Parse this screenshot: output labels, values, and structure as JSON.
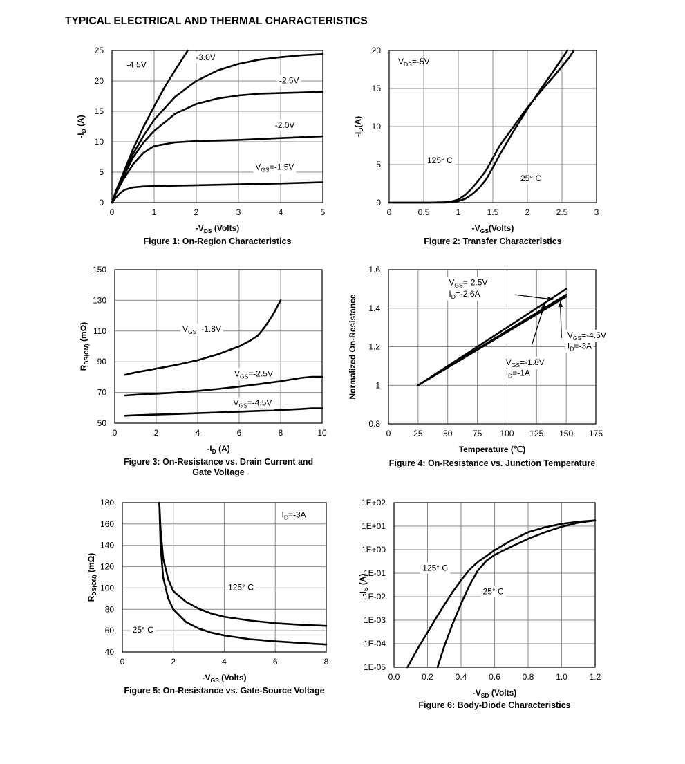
{
  "page_title": "TYPICAL ELECTRICAL AND THERMAL CHARACTERISTICS",
  "chart_data": [
    {
      "id": "fig1",
      "type": "line",
      "title": "Figure 1: On-Region Characteristics",
      "title_lines": [
        "Figure 1: On-Region Characteristics"
      ],
      "xlabel": {
        "pre": "-V",
        "sub": "DS",
        "post": " (Volts)"
      },
      "ylabel": {
        "pre": "-I",
        "sub": "D",
        "post": " (A)"
      },
      "xlim": [
        0,
        5
      ],
      "ylim": [
        0,
        25
      ],
      "xlog": false,
      "ylog": false,
      "xticks": [
        0,
        1,
        2,
        3,
        4,
        5
      ],
      "yticks": [
        0,
        5,
        10,
        15,
        20,
        25
      ],
      "xtick_labels": [
        "0",
        "1",
        "2",
        "3",
        "4",
        "5"
      ],
      "ytick_labels": [
        "0",
        "5",
        "10",
        "15",
        "20",
        "25"
      ],
      "series": [
        {
          "x": [
            0,
            0.1,
            0.25,
            0.5,
            0.75,
            1,
            1.25,
            1.5,
            1.75,
            1.8
          ],
          "y": [
            0,
            2,
            4.5,
            8.8,
            12.5,
            15.8,
            19,
            21.8,
            24.5,
            25
          ]
        },
        {
          "x": [
            0,
            0.1,
            0.25,
            0.5,
            0.75,
            1,
            1.5,
            2,
            2.5,
            3,
            3.5,
            4,
            4.5,
            5
          ],
          "y": [
            0,
            1.8,
            4.2,
            8,
            11,
            13.6,
            17.4,
            20,
            21.7,
            22.8,
            23.5,
            23.9,
            24.2,
            24.4
          ]
        },
        {
          "x": [
            0,
            0.1,
            0.25,
            0.5,
            0.75,
            1,
            1.5,
            2,
            2.5,
            3,
            3.5,
            4,
            5
          ],
          "y": [
            0,
            1.7,
            4,
            7.4,
            9.9,
            11.8,
            14.6,
            16.2,
            17.1,
            17.6,
            17.9,
            18,
            18.2
          ]
        },
        {
          "x": [
            0,
            0.1,
            0.25,
            0.5,
            0.75,
            1,
            1.5,
            2,
            2.5,
            3,
            4,
            5
          ],
          "y": [
            0,
            1.6,
            3.6,
            6.3,
            8.2,
            9.3,
            9.9,
            10.1,
            10.2,
            10.3,
            10.6,
            10.9
          ]
        },
        {
          "x": [
            0,
            0.1,
            0.2,
            0.3,
            0.5,
            0.75,
            1,
            2,
            3,
            4,
            5
          ],
          "y": [
            0,
            0.9,
            1.6,
            2.1,
            2.5,
            2.65,
            2.7,
            2.85,
            3,
            3.15,
            3.35
          ]
        }
      ],
      "annotations": [
        {
          "x": 0.58,
          "y": 22.2,
          "pre": "-4.5V",
          "sub": "",
          "post": "",
          "anchor": "middle",
          "bg": false
        },
        {
          "x": 2.22,
          "y": 23.4,
          "pre": "-3.0V",
          "sub": "",
          "post": "",
          "anchor": "middle",
          "bg": true
        },
        {
          "x": 4.2,
          "y": 19.6,
          "pre": "-2.5V",
          "sub": "",
          "post": "",
          "anchor": "middle",
          "bg": true
        },
        {
          "x": 4.1,
          "y": 12.3,
          "pre": "-2.0V",
          "sub": "",
          "post": "",
          "anchor": "middle",
          "bg": true
        },
        {
          "x": 3.4,
          "y": 5.4,
          "pre": "V",
          "sub": "GS",
          "post": "=-1.5V",
          "anchor": "start",
          "bg": true
        }
      ]
    },
    {
      "id": "fig2",
      "type": "line",
      "title": "Figure 2: Transfer Characteristics",
      "title_lines": [
        "Figure 2: Transfer Characteristics"
      ],
      "xlabel": {
        "pre": "-V",
        "sub": "GS",
        "post": "(Volts)"
      },
      "ylabel": {
        "pre": "-I",
        "sub": "D",
        "post": "(A)"
      },
      "xlim": [
        0,
        3
      ],
      "ylim": [
        0,
        20
      ],
      "xlog": false,
      "ylog": false,
      "xticks": [
        0,
        0.5,
        1,
        1.5,
        2,
        2.5,
        3
      ],
      "yticks": [
        0,
        5,
        10,
        15,
        20
      ],
      "xtick_labels": [
        "0",
        "0.5",
        "1",
        "1.5",
        "2",
        "2.5",
        "3"
      ],
      "ytick_labels": [
        "0",
        "5",
        "10",
        "15",
        "20"
      ],
      "series": [
        {
          "x": [
            0,
            0.6,
            0.8,
            0.9,
            1,
            1.1,
            1.2,
            1.3,
            1.4,
            1.6,
            1.8,
            2,
            2.2,
            2.4,
            2.6,
            2.67
          ],
          "y": [
            0,
            0,
            0.05,
            0.15,
            0.4,
            1,
            1.9,
            3,
            4.2,
            7.5,
            10,
            12.5,
            14.7,
            16.8,
            19,
            20
          ]
        },
        {
          "x": [
            0,
            0.8,
            0.9,
            1,
            1.1,
            1.2,
            1.3,
            1.4,
            1.5,
            1.6,
            1.8,
            2,
            2.2,
            2.4,
            2.58
          ],
          "y": [
            0,
            0,
            0.05,
            0.2,
            0.5,
            1.1,
            1.9,
            3,
            4.6,
            6.3,
            9.4,
            12.3,
            15,
            17.6,
            20
          ]
        }
      ],
      "annotations": [
        {
          "x": 0.13,
          "y": 18.2,
          "pre": "V",
          "sub": "DS",
          "post": "=-5V",
          "anchor": "start",
          "bg": false
        },
        {
          "x": 0.55,
          "y": 5.2,
          "pre": "125° C",
          "sub": "",
          "post": "",
          "anchor": "start",
          "bg": true
        },
        {
          "x": 1.9,
          "y": 2.8,
          "pre": "25° C",
          "sub": "",
          "post": "",
          "anchor": "start",
          "bg": true
        }
      ]
    },
    {
      "id": "fig3",
      "type": "line",
      "title": "Figure 3: On-Resistance vs. Drain Current and Gate Voltage",
      "title_lines": [
        "Figure 3: On-Resistance vs. Drain Current and",
        "Gate Voltage"
      ],
      "xlabel": {
        "pre": "-I",
        "sub": "D",
        "post": " (A)"
      },
      "ylabel": {
        "pre": "R",
        "sub": "DS(ON)",
        "post": " (mΩ)"
      },
      "xlim": [
        0,
        10
      ],
      "ylim": [
        50,
        150
      ],
      "xlog": false,
      "ylog": false,
      "xticks": [
        0,
        2,
        4,
        6,
        8,
        10
      ],
      "yticks": [
        50,
        70,
        90,
        110,
        130,
        150
      ],
      "xtick_labels": [
        "0",
        "2",
        "4",
        "6",
        "8",
        "10"
      ],
      "ytick_labels": [
        "50",
        "70",
        "90",
        "110",
        "130",
        "150"
      ],
      "series": [
        {
          "x": [
            0.5,
            1,
            2,
            3,
            4,
            5,
            6,
            6.5,
            6.9,
            7.2,
            7.6,
            8
          ],
          "y": [
            81.5,
            83,
            85.5,
            88,
            91,
            95,
            100,
            103.5,
            107,
            112,
            120,
            130
          ]
        },
        {
          "x": [
            0.5,
            1,
            2,
            3,
            4,
            5,
            6,
            7,
            8,
            9,
            9.5,
            10
          ],
          "y": [
            68,
            68.5,
            69.2,
            70,
            71,
            72.3,
            73.8,
            75.5,
            77.3,
            79.5,
            80.2,
            80.2
          ]
        },
        {
          "x": [
            0.5,
            1,
            2,
            3,
            4,
            5,
            6,
            7,
            8,
            9,
            9.5,
            10
          ],
          "y": [
            54.8,
            55.2,
            55.6,
            56,
            56.5,
            57,
            57.5,
            58,
            58.5,
            59.2,
            59.7,
            59.7
          ]
        }
      ],
      "annotations": [
        {
          "x": 4.2,
          "y": 109.5,
          "pre": "V",
          "sub": "GS",
          "post": "=-1.8V",
          "anchor": "middle",
          "bg": true
        },
        {
          "x": 6.7,
          "y": 80.5,
          "pre": "V",
          "sub": "GS",
          "post": "=-2.5V",
          "anchor": "middle",
          "bg": true
        },
        {
          "x": 6.65,
          "y": 61.4,
          "pre": "V",
          "sub": "GS",
          "post": "=-4.5V",
          "anchor": "middle",
          "bg": true
        }
      ]
    },
    {
      "id": "fig4",
      "type": "line",
      "title": "Figure 4: On-Resistance vs. Junction Temperature",
      "title_lines": [
        "Figure 4: On-Resistance vs. Junction Temperature"
      ],
      "xlabel": {
        "pre": "Temperature (℃)",
        "sub": "",
        "post": ""
      },
      "ylabel": {
        "pre": "Normalized On-Resistance",
        "sub": "",
        "post": ""
      },
      "xlim": [
        0,
        175
      ],
      "ylim": [
        0.8,
        1.6
      ],
      "xlog": false,
      "ylog": false,
      "xticks": [
        0,
        25,
        50,
        75,
        100,
        125,
        150,
        175
      ],
      "yticks": [
        0.8,
        1,
        1.2,
        1.4,
        1.6
      ],
      "xtick_labels": [
        "0",
        "25",
        "50",
        "75",
        "100",
        "125",
        "150",
        "175"
      ],
      "ytick_labels": [
        "0.8",
        "1",
        "1.2",
        "1.4",
        "1.6"
      ],
      "series": [
        {
          "x": [
            25,
            150
          ],
          "y": [
            1,
            1.5
          ]
        },
        {
          "x": [
            25,
            150
          ],
          "y": [
            1,
            1.47
          ]
        },
        {
          "x": [
            25,
            150
          ],
          "y": [
            1,
            1.46
          ]
        }
      ],
      "annotations": [
        {
          "x": 51,
          "y": 1.52,
          "pre": "V",
          "sub": "GS",
          "post": "=-2.5V",
          "anchor": "start",
          "bg": true
        },
        {
          "x": 51,
          "y": 1.46,
          "pre": "I",
          "sub": "D",
          "post": "=-2.6A",
          "anchor": "start",
          "bg": true
        },
        {
          "x": 151,
          "y": 1.245,
          "pre": "V",
          "sub": "GS",
          "post": "=-4.5V",
          "anchor": "start",
          "bg": true
        },
        {
          "x": 151,
          "y": 1.19,
          "pre": "I",
          "sub": "D",
          "post": "=-3A",
          "anchor": "start",
          "bg": true
        },
        {
          "x": 99,
          "y": 1.105,
          "pre": "V",
          "sub": "GS",
          "post": "=-1.8V",
          "anchor": "start",
          "bg": true
        },
        {
          "x": 99,
          "y": 1.05,
          "pre": "I",
          "sub": "D",
          "post": "=-1A",
          "anchor": "start",
          "bg": true
        }
      ],
      "arrows": [
        {
          "from": [
            107,
            1.47
          ],
          "to": [
            139,
            1.445
          ]
        },
        {
          "from": [
            146,
            1.245
          ],
          "to": [
            145,
            1.435
          ]
        },
        {
          "from": [
            121,
            1.21
          ],
          "to": [
            132,
            1.425
          ]
        }
      ]
    },
    {
      "id": "fig5",
      "type": "line",
      "title": "Figure 5: On-Resistance vs. Gate-Source Voltage",
      "title_lines": [
        "Figure 5: On-Resistance vs. Gate-Source Voltage"
      ],
      "xlabel": {
        "pre": "-V",
        "sub": "GS",
        "post": " (Volts)"
      },
      "ylabel": {
        "pre": "R",
        "sub": "DS(ON)",
        "post": " (mΩ)"
      },
      "xlim": [
        0,
        8
      ],
      "ylim": [
        40,
        180
      ],
      "xlog": false,
      "ylog": false,
      "xticks": [
        0,
        2,
        4,
        6,
        8
      ],
      "yticks": [
        40,
        60,
        80,
        100,
        120,
        140,
        160,
        180
      ],
      "xtick_labels": [
        "0",
        "2",
        "4",
        "6",
        "8"
      ],
      "ytick_labels": [
        "40",
        "60",
        "80",
        "100",
        "120",
        "140",
        "160",
        "180"
      ],
      "series": [
        {
          "x": [
            1.45,
            1.5,
            1.6,
            1.8,
            2,
            2.5,
            3,
            3.5,
            4,
            5,
            6,
            7,
            8
          ],
          "y": [
            180,
            155,
            128,
            108,
            97,
            87,
            80.5,
            76,
            73,
            69.5,
            67,
            65.5,
            64.5
          ]
        },
        {
          "x": [
            1.45,
            1.5,
            1.6,
            1.8,
            2,
            2.5,
            3,
            3.5,
            4,
            5,
            6,
            7,
            8
          ],
          "y": [
            180,
            140,
            110,
            90,
            80,
            68,
            62,
            58,
            55.5,
            52,
            50,
            48.5,
            47
          ]
        }
      ],
      "annotations": [
        {
          "x": 6.25,
          "y": 166,
          "pre": "I",
          "sub": "D",
          "post": "=-3A",
          "anchor": "start",
          "bg": false
        },
        {
          "x": 4.15,
          "y": 98,
          "pre": "125° C",
          "sub": "",
          "post": "",
          "anchor": "start",
          "bg": true
        },
        {
          "x": 0.4,
          "y": 58,
          "pre": "25° C",
          "sub": "",
          "post": "",
          "anchor": "start",
          "bg": true
        }
      ]
    },
    {
      "id": "fig6",
      "type": "line",
      "title": "Figure 6: Body-Diode Characteristics",
      "title_lines": [
        "Figure 6: Body-Diode Characteristics"
      ],
      "xlabel": {
        "pre": "-V",
        "sub": "SD",
        "post": " (Volts)"
      },
      "ylabel": {
        "pre": "-I",
        "sub": "S",
        "post": " (A)"
      },
      "xlim": [
        0,
        1.2
      ],
      "ylim": [
        1e-05,
        100
      ],
      "xlog": false,
      "ylog": true,
      "xticks": [
        0,
        0.2,
        0.4,
        0.6,
        0.8,
        1,
        1.2
      ],
      "yticks": [
        1e-05,
        0.0001,
        0.001,
        0.01,
        0.1,
        1,
        10,
        100
      ],
      "xtick_labels": [
        "0.0",
        "0.2",
        "0.4",
        "0.6",
        "0.8",
        "1.0",
        "1.2"
      ],
      "ytick_labels": [
        "1E-05",
        "1E-04",
        "1E-03",
        "1E-02",
        "1E-01",
        "1E+00",
        "1E+01",
        "1E+02"
      ],
      "series": [
        {
          "x": [
            0.08,
            0.15,
            0.2,
            0.25,
            0.3,
            0.35,
            0.4,
            0.45,
            0.5,
            0.6,
            0.7,
            0.8,
            0.9,
            1,
            1.1,
            1.2
          ],
          "y": [
            1e-05,
            8e-05,
            0.0003,
            0.0012,
            0.0045,
            0.016,
            0.05,
            0.14,
            0.3,
            0.95,
            2.5,
            5.5,
            9,
            12.5,
            15.5,
            17.5
          ]
        },
        {
          "x": [
            0.26,
            0.3,
            0.35,
            0.4,
            0.45,
            0.5,
            0.55,
            0.6,
            0.7,
            0.8,
            0.9,
            1,
            1.1,
            1.2
          ],
          "y": [
            1e-05,
            8e-05,
            0.0007,
            0.005,
            0.03,
            0.13,
            0.33,
            0.6,
            1.35,
            2.9,
            5.5,
            9.5,
            14,
            17.5
          ]
        }
      ],
      "annotations": [
        {
          "x": 0.17,
          "y": 0.125,
          "pre": "125° C",
          "sub": "",
          "post": "",
          "anchor": "start",
          "bg": true
        },
        {
          "x": 0.53,
          "y": 0.0125,
          "pre": "25° C",
          "sub": "",
          "post": "",
          "anchor": "start",
          "bg": true
        }
      ]
    }
  ]
}
